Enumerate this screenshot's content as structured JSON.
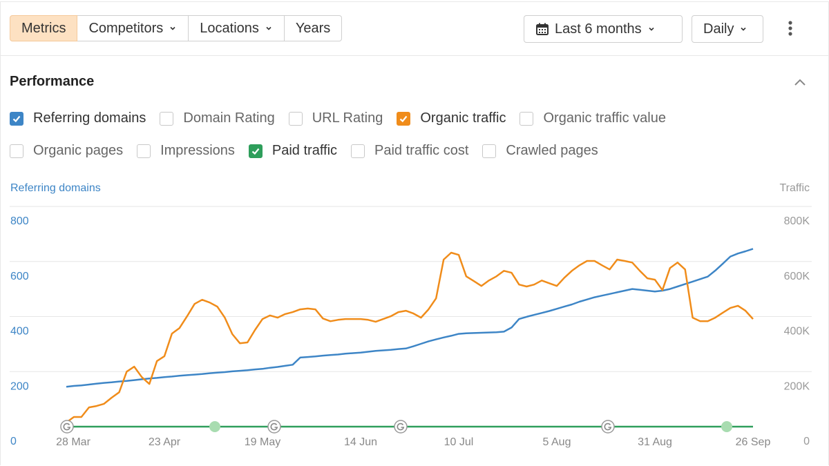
{
  "toolbar": {
    "tabs": [
      "Metrics",
      "Competitors",
      "Locations",
      "Years"
    ],
    "period": "Last 6 months",
    "interval": "Daily"
  },
  "section_title": "Performance",
  "metrics": [
    [
      {
        "label": "Referring domains",
        "checked": true,
        "color": "#3d85c6"
      },
      {
        "label": "Domain Rating",
        "checked": false
      },
      {
        "label": "URL Rating",
        "checked": false
      },
      {
        "label": "Organic traffic",
        "checked": true,
        "color": "#f08c1a"
      },
      {
        "label": "Organic traffic value",
        "checked": false
      }
    ],
    [
      {
        "label": "Organic pages",
        "checked": false
      },
      {
        "label": "Impressions",
        "checked": false
      },
      {
        "label": "Paid traffic",
        "checked": true,
        "color": "#2e9e5b"
      },
      {
        "label": "Paid traffic cost",
        "checked": false
      },
      {
        "label": "Crawled pages",
        "checked": false
      }
    ]
  ],
  "chart_data": {
    "type": "line",
    "ylabel": "Referring domains",
    "y2label": "Traffic",
    "categories": [
      "28 Mar",
      null,
      null,
      null,
      null,
      null,
      null,
      null,
      null,
      null,
      null,
      null,
      null,
      "23 Apr",
      null,
      null,
      null,
      null,
      null,
      null,
      null,
      null,
      null,
      null,
      null,
      null,
      "19 May",
      null,
      null,
      null,
      null,
      null,
      null,
      null,
      null,
      null,
      null,
      null,
      null,
      "14 Jun",
      null,
      null,
      null,
      null,
      null,
      null,
      null,
      null,
      null,
      null,
      null,
      null,
      "10 Jul",
      null,
      null,
      null,
      null,
      null,
      null,
      null,
      null,
      null,
      null,
      null,
      null,
      "5 Aug",
      null,
      null,
      null,
      null,
      null,
      null,
      null,
      null,
      null,
      null,
      null,
      null,
      "31 Aug",
      null,
      null,
      null,
      null,
      null,
      null,
      null,
      null,
      null,
      null,
      null,
      null,
      "26 Sep"
    ],
    "ylim": [
      0,
      800
    ],
    "yticks": [
      0,
      200,
      400,
      600,
      800
    ],
    "y2lim": [
      0,
      800000
    ],
    "y2ticks": [
      0,
      {
        "value": 200000,
        "label": "200K"
      },
      {
        "value": 400000,
        "label": "400K"
      },
      {
        "value": 600000,
        "label": "600K"
      },
      {
        "value": 800000,
        "label": "800K"
      }
    ],
    "grid": true,
    "series": [
      {
        "name": "Referring domains",
        "color": "#3d85c6",
        "axis": "y",
        "values": [
          145,
          148,
          150,
          153,
          156,
          159,
          161,
          164,
          166,
          169,
          172,
          175,
          177,
          180,
          182,
          185,
          187,
          189,
          191,
          194,
          196,
          198,
          201,
          203,
          205,
          208,
          210,
          214,
          217,
          221,
          225,
          251,
          253,
          255,
          258,
          260,
          262,
          265,
          267,
          269,
          272,
          275,
          277,
          279,
          282,
          284,
          292,
          301,
          310,
          317,
          324,
          330,
          337,
          339,
          340,
          341,
          342,
          343,
          345,
          360,
          391,
          399,
          406,
          413,
          420,
          428,
          436,
          444,
          454,
          462,
          470,
          476,
          482,
          488,
          494,
          500,
          497,
          494,
          491,
          494,
          500,
          509,
          518,
          527,
          536,
          545,
          567,
          592,
          618,
          629,
          637,
          646
        ]
      },
      {
        "name": "Organic traffic",
        "color": "#f08c1a",
        "axis": "y2",
        "values": [
          15000,
          35000,
          35000,
          70000,
          75000,
          83000,
          105000,
          125000,
          200000,
          218000,
          180000,
          155000,
          238000,
          256000,
          338000,
          358000,
          401000,
          446000,
          461000,
          451000,
          436000,
          396000,
          336000,
          303000,
          306000,
          351000,
          391000,
          404000,
          396000,
          409000,
          416000,
          426000,
          429000,
          426000,
          393000,
          383000,
          388000,
          391000,
          391000,
          391000,
          388000,
          381000,
          391000,
          401000,
          416000,
          421000,
          411000,
          396000,
          426000,
          466000,
          607000,
          632000,
          624000,
          546000,
          529000,
          511000,
          531000,
          546000,
          566000,
          559000,
          516000,
          509000,
          516000,
          531000,
          521000,
          511000,
          541000,
          566000,
          586000,
          602000,
          602000,
          586000,
          571000,
          607000,
          602000,
          596000,
          566000,
          539000,
          534000,
          496000,
          576000,
          596000,
          571000,
          396000,
          383000,
          383000,
          396000,
          414000,
          431000,
          439000,
          421000,
          391000
        ]
      },
      {
        "name": "Paid traffic",
        "color": "#2e9e5b",
        "axis": "y2",
        "values": [
          0,
          0,
          0,
          0,
          0,
          0,
          0,
          0,
          0,
          0,
          0,
          0,
          0,
          0,
          0,
          0,
          0,
          0,
          0,
          0,
          0,
          0,
          0,
          0,
          0,
          0,
          0,
          0,
          0,
          0,
          0,
          0,
          0,
          0,
          0,
          0,
          0,
          0,
          0,
          0,
          0,
          0,
          0,
          0,
          0,
          0,
          0,
          0,
          0,
          0,
          0,
          0,
          0,
          0,
          0,
          0,
          0,
          0,
          0,
          0,
          0,
          0,
          0,
          0,
          0,
          0,
          0,
          0,
          0,
          0,
          0,
          0,
          0,
          0,
          0,
          0,
          0,
          0,
          0,
          0,
          0,
          0,
          0,
          0,
          0,
          0,
          0,
          0,
          0,
          0,
          0,
          0
        ]
      }
    ]
  }
}
